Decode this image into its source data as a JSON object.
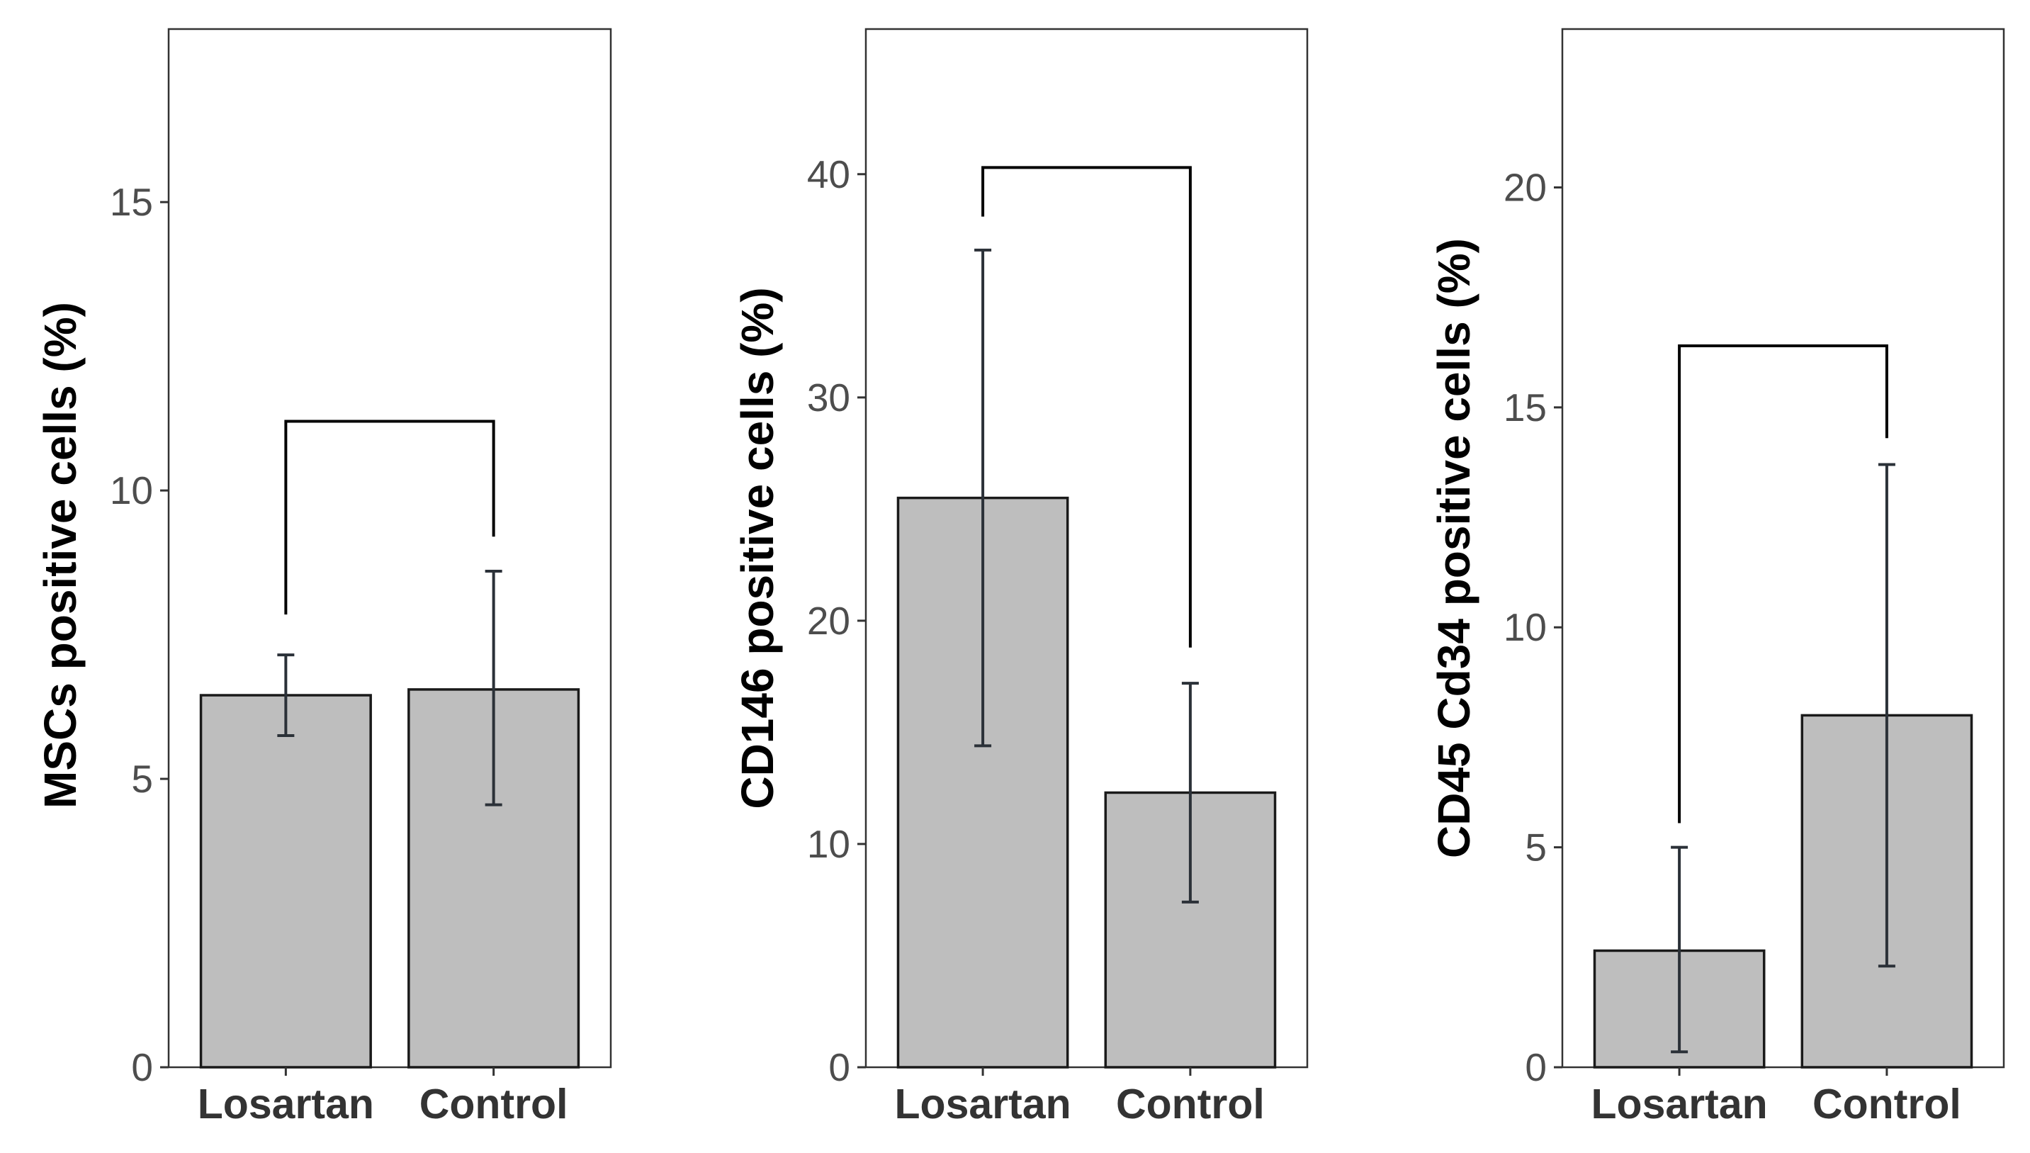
{
  "colors": {
    "bar_fill": "#bebebe",
    "bar_stroke": "#1a1a1a",
    "error_bar": "#2b3138",
    "panel_border": "#333333",
    "bracket": "#000000",
    "tick_text": "#4d4d4d"
  },
  "chart_data": [
    {
      "type": "bar",
      "categories": [
        "Losartan",
        "Control"
      ],
      "values": [
        6.45,
        6.55
      ],
      "errors": [
        [
          5.75,
          7.15
        ],
        [
          4.55,
          8.6
        ]
      ],
      "ylabel": "MSCs positive cells (%)",
      "ylim": [
        0,
        18
      ],
      "yticks": [
        0,
        5,
        10,
        15
      ],
      "ytick_labels": [
        "0",
        "5",
        "10",
        "15"
      ],
      "bracket": {
        "y": 11.2,
        "left_end": 7.85,
        "right_end": 9.2
      },
      "grid": false
    },
    {
      "type": "bar",
      "categories": [
        "Losartan",
        "Control"
      ],
      "values": [
        25.5,
        12.3
      ],
      "errors": [
        [
          14.4,
          36.6
        ],
        [
          7.4,
          17.2
        ]
      ],
      "ylabel": "CD146 positive cells (%)",
      "ylim": [
        0,
        46.5
      ],
      "yticks": [
        0,
        10,
        20,
        30,
        40
      ],
      "ytick_labels": [
        "0",
        "10",
        "20",
        "30",
        "40"
      ],
      "bracket": {
        "y": 40.3,
        "left_end": 38.1,
        "right_end": 18.8
      },
      "grid": false
    },
    {
      "type": "bar",
      "categories": [
        "Losartan",
        "Control"
      ],
      "values": [
        2.65,
        8.0
      ],
      "errors": [
        [
          0.35,
          5.0
        ],
        [
          2.3,
          13.7
        ]
      ],
      "ylabel": "CD45 Cd34 positive cells (%)",
      "ylim": [
        0,
        23.6
      ],
      "yticks": [
        0,
        5,
        10,
        15,
        20
      ],
      "ytick_labels": [
        "0",
        "5",
        "10",
        "15",
        "20"
      ],
      "bracket": {
        "y": 16.4,
        "left_end": 5.55,
        "right_end": 14.3
      },
      "grid": false
    }
  ]
}
